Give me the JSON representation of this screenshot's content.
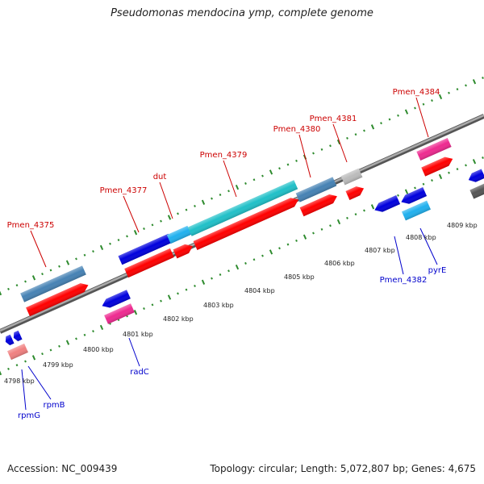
{
  "title": "Pseudomonas mendocina ymp, complete genome",
  "footer": {
    "accession": "Accession: NC_009439",
    "stats": "Topology: circular; Length: 5,072,807 bp; Genes: 4,675"
  },
  "colors": {
    "backbone": "#888888",
    "dots": "#2e8b2e",
    "top_label": "#cc0000",
    "bottom_label": "#0000cc",
    "red_gene": "#ff0000",
    "blue_gene": "#0000dd",
    "steel_gene": "#4682b4",
    "cyan_gene": "#20c0c8",
    "light_blue_gene": "#20b0ee",
    "pink_gene": "#ee2a90",
    "grey_gene": "#bbbbbb",
    "salmon_gene": "#f08080"
  },
  "scale_ticks": [
    "4798 kbp",
    "4799 kbp",
    "4800 kbp",
    "4801 kbp",
    "4802 kbp",
    "4803 kbp",
    "4804 kbp",
    "4805 kbp",
    "4806 kbp",
    "4807 kbp",
    "4808 kbp",
    "4809 kbp"
  ],
  "top_labels": [
    "Pmen_4375",
    "Pmen_4377",
    "dut",
    "Pmen_4379",
    "Pmen_4380",
    "Pmen_4381",
    "Pmen_4384"
  ],
  "bottom_labels": [
    "rpmG",
    "rpmB",
    "radC",
    "Pmen_4382",
    "pyrE"
  ]
}
